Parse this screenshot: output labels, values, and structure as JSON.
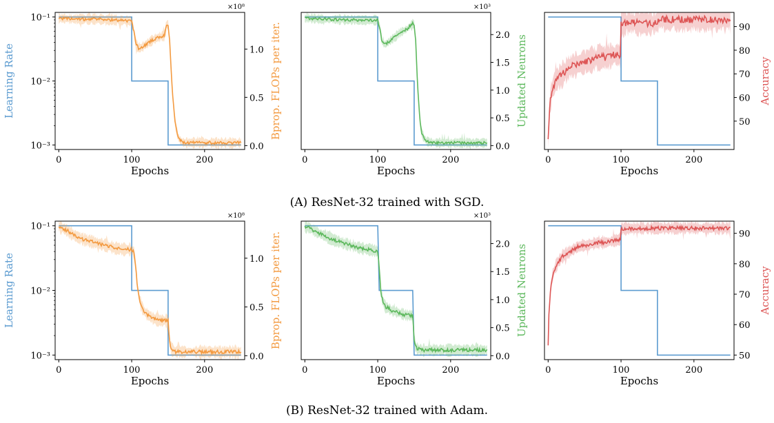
{
  "colors": {
    "lr": "#5b9bd0",
    "flops": "#f39a40",
    "neurons": "#5cb85c",
    "acc": "#dd5555",
    "axis": "#000000"
  },
  "captions": [
    {
      "label": "(A)",
      "text": "ResNet-32 trained with SGD."
    },
    {
      "label": "(B)",
      "text": "ResNet-32 trained with Adam."
    }
  ],
  "chart_data": [
    {
      "type": "line",
      "row": "A",
      "col": 0,
      "xlabel": "Epochs",
      "xlim": [
        -5,
        255
      ],
      "xticks": [
        0,
        100,
        200
      ],
      "left_axis": {
        "label": "Learning Rate",
        "scale": "log",
        "lim": [
          0.00085,
          0.118
        ],
        "ticks": [
          {
            "v": 0.1,
            "t": "10⁻¹"
          },
          {
            "v": 0.01,
            "t": "10⁻²"
          },
          {
            "v": 0.001,
            "t": "10⁻³"
          }
        ]
      },
      "right_axis": {
        "label": "Bprop. FLOPs per iter.",
        "multiplier": "×10⁸",
        "lim": [
          -0.04,
          1.38
        ],
        "ticks": [
          {
            "v": 0.0,
            "t": "0.0"
          },
          {
            "v": 0.5,
            "t": "0.5"
          },
          {
            "v": 1.0,
            "t": "1.0"
          }
        ]
      },
      "series": [
        {
          "axis": "left",
          "color_key": "lr",
          "step": true,
          "x": [
            0,
            100,
            100,
            150,
            150,
            250
          ],
          "y": [
            0.1,
            0.1,
            0.01,
            0.01,
            0.001,
            0.001
          ]
        },
        {
          "axis": "right",
          "color_key": "flops",
          "x": [
            0,
            20,
            50,
            80,
            100,
            103,
            106,
            110,
            120,
            130,
            140,
            145,
            148,
            150,
            152,
            155,
            158,
            160,
            163,
            167,
            172,
            180,
            200,
            250
          ],
          "y": [
            1.32,
            1.31,
            1.31,
            1.3,
            1.29,
            1.18,
            1.05,
            1.0,
            1.05,
            1.1,
            1.13,
            1.14,
            1.26,
            1.25,
            1.1,
            0.65,
            0.35,
            0.22,
            0.1,
            0.05,
            0.03,
            0.03,
            0.03,
            0.03
          ],
          "band": 0.05
        }
      ]
    },
    {
      "type": "line",
      "row": "A",
      "col": 1,
      "xlabel": "Epochs",
      "xlim": [
        -5,
        255
      ],
      "xticks": [
        0,
        100,
        200
      ],
      "left_axis": {
        "scale": "log",
        "lim": [
          0.00085,
          0.118
        ],
        "ticks": []
      },
      "right_axis": {
        "label": "Updated Neurons",
        "multiplier": "×10³",
        "lim": [
          -0.07,
          2.4
        ],
        "ticks": [
          {
            "v": 0.0,
            "t": "0.0"
          },
          {
            "v": 0.5,
            "t": "0.5"
          },
          {
            "v": 1.0,
            "t": "1.0"
          },
          {
            "v": 1.5,
            "t": "1.5"
          },
          {
            "v": 2.0,
            "t": "2.0"
          }
        ]
      },
      "series": [
        {
          "axis": "left",
          "color_key": "lr",
          "step": true,
          "x": [
            0,
            100,
            100,
            150,
            150,
            250
          ],
          "y": [
            0.1,
            0.1,
            0.01,
            0.01,
            0.001,
            0.001
          ]
        },
        {
          "axis": "right",
          "color_key": "neurons",
          "x": [
            0,
            20,
            50,
            80,
            100,
            103,
            106,
            110,
            120,
            130,
            140,
            148,
            150,
            152,
            155,
            158,
            160,
            163,
            167,
            172,
            180,
            200,
            250
          ],
          "y": [
            2.3,
            2.28,
            2.27,
            2.26,
            2.26,
            2.1,
            1.86,
            1.82,
            1.92,
            2.03,
            2.1,
            2.2,
            2.18,
            1.9,
            1.0,
            0.42,
            0.25,
            0.14,
            0.08,
            0.06,
            0.05,
            0.05,
            0.05
          ],
          "band": 0.08
        }
      ]
    },
    {
      "type": "line",
      "row": "A",
      "col": 2,
      "xlabel": "Epochs",
      "xlim": [
        -5,
        255
      ],
      "xticks": [
        0,
        100,
        200
      ],
      "left_axis": {
        "scale": "log",
        "lim": [
          0.00085,
          0.118
        ],
        "ticks": []
      },
      "right_axis": {
        "label": "Accuracy",
        "lim": [
          38,
          96
        ],
        "ticks": [
          {
            "v": 50,
            "t": "50"
          },
          {
            "v": 60,
            "t": "60"
          },
          {
            "v": 70,
            "t": "70"
          },
          {
            "v": 80,
            "t": "80"
          },
          {
            "v": 90,
            "t": "90"
          }
        ]
      },
      "series": [
        {
          "axis": "left",
          "color_key": "lr",
          "step": true,
          "x": [
            0,
            100,
            100,
            150,
            150,
            250
          ],
          "y": [
            0.1,
            0.1,
            0.01,
            0.01,
            0.001,
            0.001
          ]
        },
        {
          "axis": "right",
          "color_key": "acc",
          "x": [
            0,
            2,
            5,
            10,
            20,
            30,
            40,
            50,
            60,
            70,
            80,
            90,
            99,
            100,
            105,
            110,
            120,
            140,
            148,
            152,
            160,
            200,
            250
          ],
          "y": [
            43,
            56,
            63,
            67,
            70,
            73,
            74,
            75,
            76,
            77,
            77,
            78,
            78,
            91,
            91.5,
            92,
            91.5,
            91.5,
            91.5,
            93,
            93,
            93,
            93
          ],
          "band": 5
        }
      ]
    },
    {
      "type": "line",
      "row": "B",
      "col": 0,
      "xlabel": "Epochs",
      "xlim": [
        -5,
        255
      ],
      "xticks": [
        0,
        100,
        200
      ],
      "left_axis": {
        "label": "Learning Rate",
        "scale": "log",
        "lim": [
          0.00085,
          0.118
        ],
        "ticks": [
          {
            "v": 0.1,
            "t": "10⁻¹"
          },
          {
            "v": 0.01,
            "t": "10⁻²"
          },
          {
            "v": 0.001,
            "t": "10⁻³"
          }
        ]
      },
      "right_axis": {
        "label": "Bprop. FLOPs per iter.",
        "multiplier": "×10⁸",
        "lim": [
          -0.04,
          1.38
        ],
        "ticks": [
          {
            "v": 0.0,
            "t": "0.0"
          },
          {
            "v": 0.5,
            "t": "0.5"
          },
          {
            "v": 1.0,
            "t": "1.0"
          }
        ]
      },
      "series": [
        {
          "axis": "left",
          "color_key": "lr",
          "step": true,
          "x": [
            0,
            100,
            100,
            150,
            150,
            250
          ],
          "y": [
            0.1,
            0.1,
            0.01,
            0.01,
            0.001,
            0.001
          ]
        },
        {
          "axis": "right",
          "color_key": "flops",
          "x": [
            0,
            10,
            20,
            30,
            40,
            50,
            60,
            70,
            80,
            90,
            100,
            103,
            105,
            108,
            110,
            115,
            120,
            130,
            140,
            148,
            150,
            152,
            155,
            160,
            170,
            200,
            250
          ],
          "y": [
            1.33,
            1.29,
            1.24,
            1.2,
            1.18,
            1.16,
            1.14,
            1.12,
            1.1,
            1.09,
            1.09,
            1.06,
            0.95,
            0.7,
            0.6,
            0.48,
            0.43,
            0.38,
            0.36,
            0.36,
            0.36,
            0.15,
            0.06,
            0.04,
            0.04,
            0.04,
            0.04
          ],
          "band": 0.06
        }
      ]
    },
    {
      "type": "line",
      "row": "B",
      "col": 1,
      "xlabel": "Epochs",
      "xlim": [
        -5,
        255
      ],
      "xticks": [
        0,
        100,
        200
      ],
      "left_axis": {
        "scale": "log",
        "lim": [
          0.00085,
          0.118
        ],
        "ticks": []
      },
      "right_axis": {
        "label": "Updated Neurons",
        "multiplier": "×10³",
        "lim": [
          -0.07,
          2.4
        ],
        "ticks": [
          {
            "v": 0.0,
            "t": "0.0"
          },
          {
            "v": 0.5,
            "t": "0.5"
          },
          {
            "v": 1.0,
            "t": "1.0"
          },
          {
            "v": 1.5,
            "t": "1.5"
          },
          {
            "v": 2.0,
            "t": "2.0"
          }
        ]
      },
      "series": [
        {
          "axis": "left",
          "color_key": "lr",
          "step": true,
          "x": [
            0,
            5,
            10,
            20,
            30,
            40,
            50,
            60,
            70,
            80,
            90,
            100,
            102,
            104,
            106,
            108,
            110,
            120,
            130,
            140,
            148,
            150,
            152,
            155,
            160,
            200,
            250
          ],
          "y": [
            0.1,
            0.1,
            0.1,
            0.1,
            0.1,
            0.1,
            0.1,
            0.1,
            0.1,
            0.1,
            0.1,
            0.1,
            0.01,
            0.01,
            0.01,
            0.01,
            0.01,
            0.01,
            0.01,
            0.01,
            0.01,
            0.001,
            0.001,
            0.001,
            0.001,
            0.001,
            0.001
          ]
        },
        {
          "axis": "right",
          "color_key": "neurons",
          "x": [
            0,
            5,
            10,
            20,
            30,
            40,
            50,
            60,
            70,
            80,
            90,
            100,
            102,
            104,
            106,
            108,
            110,
            120,
            130,
            140,
            148,
            150,
            152,
            155,
            160,
            200,
            250
          ],
          "y": [
            2.3,
            2.29,
            2.25,
            2.18,
            2.12,
            2.06,
            2.02,
            1.98,
            1.94,
            1.91,
            1.89,
            1.86,
            1.55,
            1.18,
            1.02,
            0.95,
            0.88,
            0.8,
            0.76,
            0.72,
            0.72,
            0.3,
            0.15,
            0.12,
            0.1,
            0.1,
            0.1
          ],
          "band": 0.1
        }
      ]
    },
    {
      "type": "line",
      "row": "B",
      "col": 2,
      "xlabel": "Epochs",
      "xlim": [
        -5,
        255
      ],
      "xticks": [
        0,
        100,
        200
      ],
      "left_axis": {
        "scale": "log",
        "lim": [
          0.00085,
          0.118
        ],
        "ticks": []
      },
      "right_axis": {
        "label": "Accuracy",
        "lim": [
          48.5,
          94
        ],
        "ticks": [
          {
            "v": 50,
            "t": "50"
          },
          {
            "v": 60,
            "t": "60"
          },
          {
            "v": 70,
            "t": "70"
          },
          {
            "v": 80,
            "t": "80"
          },
          {
            "v": 90,
            "t": "90"
          }
        ]
      },
      "series": [
        {
          "axis": "left",
          "color_key": "lr",
          "step": true,
          "x": [
            0,
            100,
            100,
            150,
            150,
            250
          ],
          "y": [
            0.1,
            0.1,
            0.01,
            0.01,
            0.001,
            0.001
          ]
        },
        {
          "axis": "right",
          "color_key": "acc",
          "x": [
            0,
            1,
            3,
            6,
            10,
            15,
            20,
            30,
            40,
            50,
            60,
            70,
            80,
            90,
            99,
            100,
            110,
            150,
            250
          ],
          "y": [
            53,
            63,
            71,
            76,
            79,
            81,
            82.5,
            84,
            85.5,
            86,
            86.5,
            87,
            87,
            87.5,
            88,
            91.5,
            91.6,
            91.7,
            91.7
          ],
          "band": 2
        }
      ]
    }
  ]
}
